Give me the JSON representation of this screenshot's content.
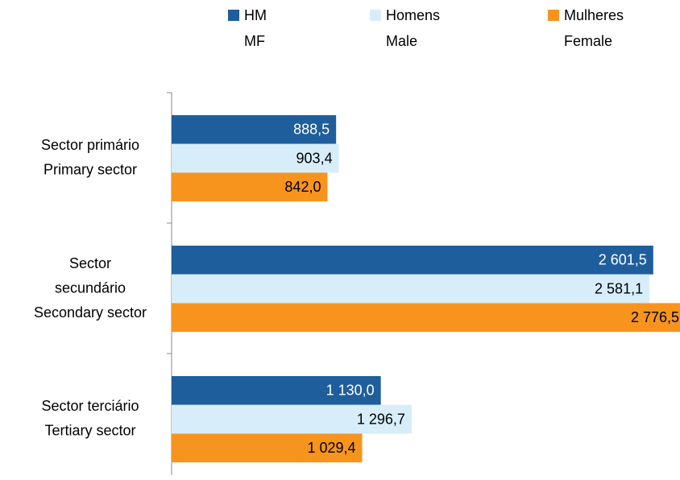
{
  "chart_data": {
    "type": "hbar",
    "categories": [
      [
        "Sector primário",
        "Primary sector"
      ],
      [
        "Sector",
        "secundário",
        "Secondary sector"
      ],
      [
        "Sector terciário",
        "Tertiary sector"
      ]
    ],
    "series": [
      {
        "name": [
          "HM",
          "MF"
        ],
        "color": "#1f5e9c",
        "label_color": "#ffffff",
        "values": [
          888.5,
          2601.5,
          1130.0
        ],
        "value_labels": [
          "888,5",
          "2 601,5",
          "1 130,0"
        ]
      },
      {
        "name": [
          "Homens",
          "Male"
        ],
        "color": "#d7edfa",
        "label_color": "#000000",
        "values": [
          903.4,
          2581.1,
          1296.7
        ],
        "value_labels": [
          "903,4",
          "2 581,1",
          "1 296,7"
        ]
      },
      {
        "name": [
          "Mulheres",
          "Female"
        ],
        "color": "#f7941d",
        "label_color": "#000000",
        "values": [
          842.0,
          2776.5,
          1029.4
        ],
        "value_labels": [
          "842,0",
          "2 776,5",
          "1 029,4"
        ]
      }
    ],
    "legend": "top"
  }
}
